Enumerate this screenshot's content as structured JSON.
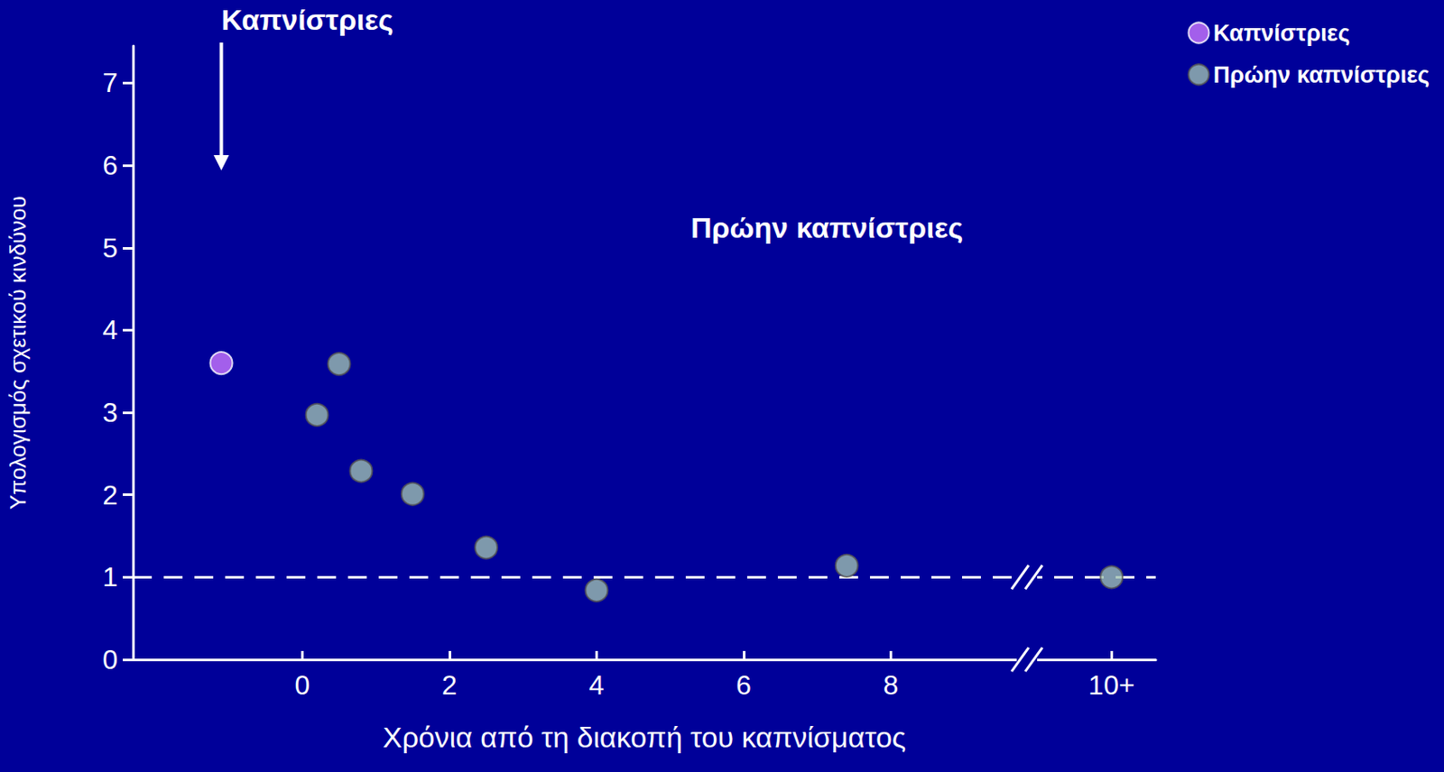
{
  "chart_data": {
    "type": "scatter",
    "x_label": "Χρόνια από τη διακοπή του καπνίσματος",
    "y_label": "Υπολογισμός σχετικού κινδύνου",
    "annotations": [
      "Καπνίστριες",
      "Πρώην καπνίστριες"
    ],
    "series": [
      {
        "name": "Καπνίστριες",
        "color": "#cc77ff",
        "x": [
          -1.1
        ],
        "values": [
          3.6
        ]
      },
      {
        "name": "Πρώην καπνίστριες",
        "color": "#9dbfb0",
        "x": [
          0.2,
          0.5,
          0.8,
          1.5,
          2.5,
          4.0,
          7.4,
          11
        ],
        "values": [
          2.97,
          3.59,
          2.29,
          2.01,
          1.36,
          0.84,
          1.14,
          1.0
        ]
      }
    ],
    "xlim": [
      -2.3,
      11.6
    ],
    "xticks": [
      0,
      2,
      4,
      6,
      8,
      {
        "value": 11,
        "label": "10+"
      }
    ],
    "ylim": [
      0,
      7.45
    ],
    "yticks": [
      0,
      1,
      2,
      3,
      4,
      5,
      6,
      7
    ],
    "reference_line": 1,
    "legend": "upper right",
    "marker": "circle"
  }
}
